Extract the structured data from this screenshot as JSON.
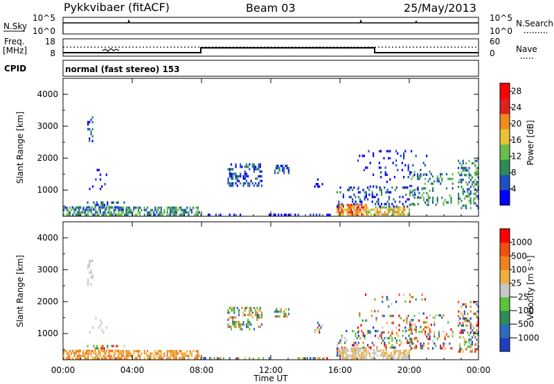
{
  "header": {
    "radar": "Pykkvibaer (fitACF)",
    "beam": "Beam 03",
    "date": "25/May/2013"
  },
  "status_panels": {
    "nsky_label": "N.Sky",
    "nsearch_label": "N.Search",
    "freq_label_line1": "Freq.",
    "freq_label_line2": "[MHz]",
    "nave_label": "Nave",
    "cpid_label": "CPID",
    "noise_ticks": [
      "10^5",
      "10^0"
    ],
    "freq_ticks": [
      "18",
      "8"
    ],
    "nave_ticks": [
      "60",
      "0"
    ],
    "cpid_text": "normal (fast stereo) 153"
  },
  "chart_data": [
    {
      "type": "heatmap",
      "title": "",
      "xlabel": "Time UT",
      "ylabel": "Slant Range [km]",
      "x_ticks": [
        "00:00",
        "04:00",
        "08:00",
        "12:00",
        "16:00",
        "20:00",
        "00:00"
      ],
      "y_ticks": [
        "1000",
        "2000",
        "3000",
        "4000"
      ],
      "ylim": [
        180,
        4500
      ],
      "colorbar": {
        "label": "Power [dB]",
        "ticks": [
          "4",
          "8",
          "12",
          "16",
          "20",
          "24",
          "28"
        ],
        "range": [
          0,
          30
        ],
        "colors": [
          "#0000ff",
          "#1f4fbf",
          "#2e8b57",
          "#6abf4b",
          "#e8c23a",
          "#f28a1e",
          "#e02020",
          "#ff0000"
        ]
      }
    },
    {
      "type": "heatmap",
      "title": "",
      "xlabel": "Time UT",
      "ylabel": "Slant Range [km]",
      "x_ticks": [
        "00:00",
        "04:00",
        "08:00",
        "12:00",
        "16:00",
        "20:00",
        "00:00"
      ],
      "y_ticks": [
        "1000",
        "2000",
        "3000",
        "4000"
      ],
      "ylim": [
        180,
        4500
      ],
      "colorbar": {
        "label": "Velocity [m s⁻¹]",
        "ticks": [
          "1000",
          "500",
          "100",
          "25",
          "−25",
          "−100",
          "−500",
          "−1000"
        ],
        "colors": [
          "#1f3fbf",
          "#2e6bbf",
          "#2e8b57",
          "#5ac43c",
          "#c8c8c8",
          "#f0b040",
          "#f08020",
          "#f05010",
          "#ff0000"
        ]
      }
    }
  ]
}
